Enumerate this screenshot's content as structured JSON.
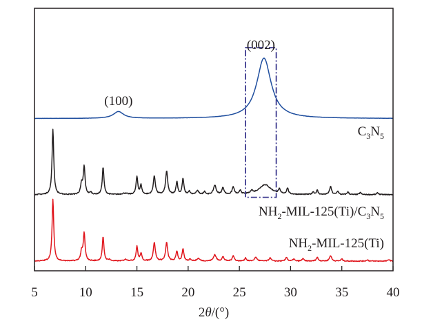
{
  "chart_data": {
    "type": "line",
    "title": "",
    "xlabel": "2θ/(°)",
    "xlabel_parts": {
      "pre": "2",
      "theta": "θ",
      "post": "/(°)"
    },
    "ylabel": "",
    "xlim": [
      5,
      40
    ],
    "ylim": [
      0,
      100
    ],
    "xticks": [
      5,
      10,
      15,
      20,
      25,
      30,
      35,
      40
    ],
    "xtick_labels": [
      "5",
      "10",
      "15",
      "20",
      "25",
      "30",
      "35",
      "40"
    ],
    "grid": false,
    "series": [
      {
        "name": "C3N5",
        "label_main": [
          "C",
          "N"
        ],
        "label_subs": [
          "3",
          "5"
        ],
        "color": "#1f4e9e",
        "baseline": 58,
        "peaks": [
          {
            "x": 13.2,
            "h": 2.6,
            "w": 0.6
          },
          {
            "x": 27.4,
            "h": 23,
            "w": 0.85
          }
        ]
      },
      {
        "name": "NH2-MIL-125(Ti)/C3N5",
        "color": "#231f20",
        "baseline": 29,
        "peaks": [
          {
            "x": 6.8,
            "h": 25,
            "w": 0.1
          },
          {
            "x": 9.6,
            "h": 4,
            "w": 0.12
          },
          {
            "x": 9.85,
            "h": 10.5,
            "w": 0.1
          },
          {
            "x": 10.5,
            "h": 0.8,
            "w": 0.1
          },
          {
            "x": 11.7,
            "h": 10.5,
            "w": 0.1
          },
          {
            "x": 13.8,
            "h": 0.5,
            "w": 0.3
          },
          {
            "x": 15.0,
            "h": 6.8,
            "w": 0.1
          },
          {
            "x": 15.4,
            "h": 3.5,
            "w": 0.1
          },
          {
            "x": 16.7,
            "h": 7,
            "w": 0.12
          },
          {
            "x": 17.9,
            "h": 9,
            "w": 0.12
          },
          {
            "x": 18.9,
            "h": 4.8,
            "w": 0.1
          },
          {
            "x": 19.5,
            "h": 6,
            "w": 0.1
          },
          {
            "x": 20.1,
            "h": 1.2,
            "w": 0.1
          },
          {
            "x": 20.9,
            "h": 1.4,
            "w": 0.15
          },
          {
            "x": 21.6,
            "h": 1.2,
            "w": 0.1
          },
          {
            "x": 22.6,
            "h": 3.5,
            "w": 0.15
          },
          {
            "x": 23.4,
            "h": 2.6,
            "w": 0.12
          },
          {
            "x": 24.4,
            "h": 2.8,
            "w": 0.12
          },
          {
            "x": 25.1,
            "h": 1.5,
            "w": 0.1
          },
          {
            "x": 26.2,
            "h": 1.2,
            "w": 0.1
          },
          {
            "x": 27.5,
            "h": 3.8,
            "w": 0.7
          },
          {
            "x": 28.9,
            "h": 1.6,
            "w": 0.1
          },
          {
            "x": 29.7,
            "h": 2.3,
            "w": 0.1
          },
          {
            "x": 32.2,
            "h": 1.0,
            "w": 0.1
          },
          {
            "x": 32.6,
            "h": 1.6,
            "w": 0.1
          },
          {
            "x": 33.9,
            "h": 3.0,
            "w": 0.12
          },
          {
            "x": 34.6,
            "h": 1.3,
            "w": 0.1
          },
          {
            "x": 35.6,
            "h": 1.0,
            "w": 0.1
          },
          {
            "x": 36.8,
            "h": 0.8,
            "w": 0.1
          },
          {
            "x": 38.5,
            "h": 0.7,
            "w": 0.1
          }
        ]
      },
      {
        "name": "NH2-MIL-125(Ti)",
        "color": "#e0161d",
        "baseline": 3.7,
        "peaks": [
          {
            "x": 6.8,
            "h": 23.5,
            "w": 0.1
          },
          {
            "x": 9.6,
            "h": 3.5,
            "w": 0.12
          },
          {
            "x": 9.85,
            "h": 10.5,
            "w": 0.1
          },
          {
            "x": 11.7,
            "h": 9.2,
            "w": 0.1
          },
          {
            "x": 12.3,
            "h": 0.6,
            "w": 0.1
          },
          {
            "x": 13.9,
            "h": 0.6,
            "w": 0.2
          },
          {
            "x": 15.0,
            "h": 5.5,
            "w": 0.1
          },
          {
            "x": 15.4,
            "h": 2.8,
            "w": 0.1
          },
          {
            "x": 16.7,
            "h": 7,
            "w": 0.12
          },
          {
            "x": 17.9,
            "h": 7,
            "w": 0.12
          },
          {
            "x": 18.9,
            "h": 3.8,
            "w": 0.1
          },
          {
            "x": 19.5,
            "h": 4.5,
            "w": 0.1
          },
          {
            "x": 20.2,
            "h": 0.8,
            "w": 0.1
          },
          {
            "x": 21.0,
            "h": 1.0,
            "w": 0.15
          },
          {
            "x": 22.6,
            "h": 2.4,
            "w": 0.15
          },
          {
            "x": 23.4,
            "h": 1.6,
            "w": 0.12
          },
          {
            "x": 24.4,
            "h": 2.0,
            "w": 0.12
          },
          {
            "x": 25.6,
            "h": 1.2,
            "w": 0.1
          },
          {
            "x": 26.6,
            "h": 1.4,
            "w": 0.15
          },
          {
            "x": 28.0,
            "h": 1.2,
            "w": 0.12
          },
          {
            "x": 29.6,
            "h": 1.5,
            "w": 0.1
          },
          {
            "x": 30.3,
            "h": 0.8,
            "w": 0.1
          },
          {
            "x": 31.2,
            "h": 1.0,
            "w": 0.1
          },
          {
            "x": 32.6,
            "h": 1.4,
            "w": 0.12
          },
          {
            "x": 33.9,
            "h": 2.1,
            "w": 0.12
          },
          {
            "x": 35.0,
            "h": 0.8,
            "w": 0.1
          },
          {
            "x": 37.5,
            "h": 0.5,
            "w": 0.1
          },
          {
            "x": 39.6,
            "h": 0.6,
            "w": 0.1
          }
        ]
      }
    ],
    "labels": {
      "composite_pre": "NH",
      "composite_sub2": "2",
      "composite_mid": "-MIL-125(Ti)/C",
      "composite_sub3": "3",
      "composite_n": "N",
      "composite_sub5": "5",
      "mil_pre": "NH",
      "mil_sub2": "2",
      "mil_post": "-MIL-125(Ti)"
    },
    "annotations": [
      {
        "text": "(100)",
        "x": 13.2
      },
      {
        "text": "(002)",
        "x": 27.1
      }
    ],
    "highlight_box": {
      "x_range": [
        25.6,
        28.6
      ],
      "y_range": [
        28,
        85
      ],
      "color": "#3d3a8f",
      "style": "dash-dot"
    }
  }
}
